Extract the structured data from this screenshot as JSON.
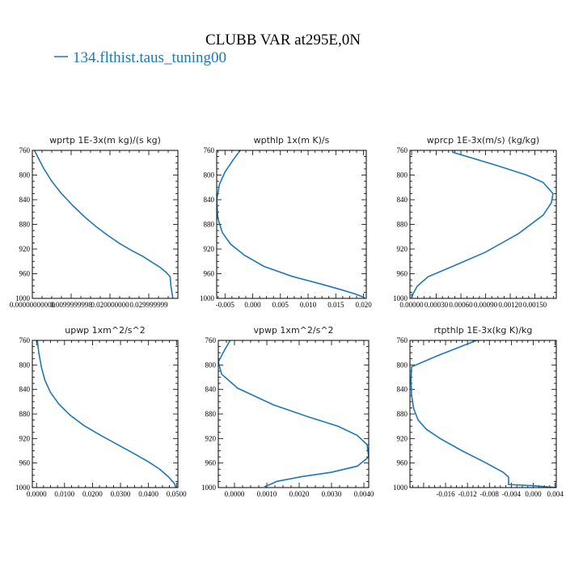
{
  "figure": {
    "title": "CLUBB VAR at295E,0N",
    "legend_label": "134.flthist.taus_tuning00",
    "line_color": "#1f77b4"
  },
  "chart_data": [
    {
      "type": "line",
      "title": "wprtp  1E-3x(m kg)/(s kg)",
      "xlim": [
        0.0,
        0.0375
      ],
      "xticks": [
        0.0,
        0.01,
        0.02,
        0.03
      ],
      "xtick_labels": [
        "0.00000000000",
        "0.0099999998",
        "0.020000000",
        "0.029999999"
      ],
      "ylim": [
        760,
        1000
      ],
      "yticks": [
        760,
        800,
        840,
        880,
        920,
        960,
        1000
      ],
      "ytick_labels": [
        "760",
        "800",
        "840",
        "880",
        "920",
        "960",
        "1000"
      ],
      "series": [
        {
          "x": [
            0.0003,
            0.0015,
            0.003,
            0.005,
            0.0075,
            0.0105,
            0.0135,
            0.0165,
            0.0195,
            0.0225,
            0.0255,
            0.0285,
            0.031,
            0.033,
            0.0345,
            0.0355,
            0.0357,
            0.0362
          ],
          "y": [
            757,
            772,
            790,
            810,
            830,
            850,
            868,
            884,
            898,
            911,
            922,
            932,
            942,
            950,
            958,
            965,
            980,
            1000
          ]
        }
      ]
    },
    {
      "type": "line",
      "title": "wpthlp  1x(m K)/s",
      "xlim": [
        -0.0065,
        0.0205
      ],
      "xticks": [
        -0.005,
        0.0,
        0.005,
        0.01,
        0.015,
        0.02
      ],
      "xtick_labels": [
        "-0.005",
        "0.000",
        "0.005",
        "0.010",
        "0.015",
        "0.020"
      ],
      "ylim": [
        760,
        1000
      ],
      "yticks": [
        760,
        800,
        840,
        880,
        920,
        960,
        1000
      ],
      "ytick_labels": [
        "760",
        "800",
        "840",
        "880",
        "920",
        "960",
        "1000"
      ],
      "series": [
        {
          "x": [
            -0.002,
            -0.0035,
            -0.005,
            -0.006,
            -0.0065,
            -0.0063,
            -0.0055,
            -0.004,
            -0.0015,
            0.002,
            0.007,
            0.012,
            0.016,
            0.0185,
            0.02,
            0.0202
          ],
          "y": [
            757,
            775,
            795,
            815,
            840,
            870,
            893,
            912,
            930,
            948,
            964,
            976,
            986,
            993,
            998,
            1000
          ]
        }
      ]
    },
    {
      "type": "line",
      "title": "wprcp  1E-3x(m/s) (kg/kg)",
      "xlim": [
        -2e-05,
        0.00176
      ],
      "xticks": [
        0.0,
        0.0003,
        0.0006,
        0.0009,
        0.0012,
        0.0015
      ],
      "xtick_labels": [
        "0.00000",
        "0.00030",
        "0.00060",
        "0.00090",
        "0.00120",
        "0.00150"
      ],
      "ylim": [
        760,
        1000
      ],
      "yticks": [
        760,
        800,
        840,
        880,
        920,
        960,
        1000
      ],
      "ytick_labels": [
        "760",
        "800",
        "840",
        "880",
        "920",
        "960",
        "1000"
      ],
      "series": [
        {
          "x": [
            0.0005,
            0.0005,
            0.001,
            0.0014,
            0.0016,
            0.00172,
            0.0017,
            0.0016,
            0.0013,
            0.0009,
            0.0005,
            0.0002,
            7e-05,
            2e-05,
            0.0
          ],
          "y": [
            757,
            763,
            783,
            800,
            812,
            830,
            845,
            865,
            895,
            925,
            948,
            965,
            980,
            992,
            1000
          ]
        }
      ]
    },
    {
      "type": "line",
      "title": "upwp  1xm^2/s^2",
      "xlim": [
        -0.0015,
        0.0505
      ],
      "xticks": [
        0.0,
        0.01,
        0.02,
        0.03,
        0.04,
        0.05
      ],
      "xtick_labels": [
        "0.0000",
        "0.0100",
        "0.0200",
        "0.0300",
        "0.0400",
        "0.0500"
      ],
      "ylim": [
        760,
        1000
      ],
      "yticks": [
        760,
        800,
        840,
        880,
        920,
        960,
        1000
      ],
      "ytick_labels": [
        "760",
        "800",
        "840",
        "880",
        "920",
        "960",
        "1000"
      ],
      "series": [
        {
          "x": [
            0.0002,
            0.0008,
            0.0018,
            0.003,
            0.005,
            0.008,
            0.012,
            0.017,
            0.023,
            0.029,
            0.035,
            0.04,
            0.044,
            0.047,
            0.0492,
            0.0498
          ],
          "y": [
            757,
            780,
            805,
            825,
            845,
            864,
            882,
            899,
            915,
            930,
            945,
            958,
            970,
            982,
            993,
            1000
          ]
        }
      ]
    },
    {
      "type": "line",
      "title": "vpwp  1xm^2/s^2",
      "xlim": [
        -0.0005,
        0.00415
      ],
      "xticks": [
        0.0,
        0.001,
        0.002,
        0.003,
        0.004
      ],
      "xtick_labels": [
        "0.0000",
        "0.0010",
        "0.0020",
        "0.0030",
        "0.0040"
      ],
      "ylim": [
        760,
        1000
      ],
      "yticks": [
        760,
        800,
        840,
        880,
        920,
        960,
        1000
      ],
      "ytick_labels": [
        "760",
        "800",
        "840",
        "880",
        "920",
        "960",
        "1000"
      ],
      "series": [
        {
          "x": [
            -0.0001,
            -0.0003,
            -0.0005,
            -0.0004,
            0.0001,
            0.0012,
            0.0023,
            0.0032,
            0.0038,
            0.0041,
            0.00415,
            0.0038,
            0.003,
            0.0021,
            0.0013,
            0.0011,
            0.00095,
            0.001
          ],
          "y": [
            757,
            775,
            795,
            815,
            838,
            865,
            885,
            900,
            915,
            930,
            950,
            965,
            975,
            982,
            990,
            995,
            998,
            1000
          ]
        }
      ]
    },
    {
      "type": "line",
      "title": "rtpthlp  1E-3x(kg K)/kg",
      "xlim": [
        -0.0225,
        0.0042
      ],
      "xticks": [
        -0.016,
        -0.012,
        -0.008,
        -0.004,
        0.0,
        0.004
      ],
      "xtick_labels": [
        "-0.016",
        "-0.012",
        "-0.008",
        "-0.004",
        "0.000",
        "0.004"
      ],
      "ylim": [
        760,
        1000
      ],
      "yticks": [
        760,
        800,
        840,
        880,
        920,
        960,
        1000
      ],
      "ytick_labels": [
        "760",
        "800",
        "840",
        "880",
        "920",
        "960",
        "1000"
      ],
      "series": [
        {
          "x": [
            -0.0095,
            -0.0175,
            -0.0222,
            -0.0223,
            -0.0222,
            -0.0218,
            -0.021,
            -0.0195,
            -0.017,
            -0.013,
            -0.009,
            -0.0055,
            -0.0045,
            -0.0045,
            0.0,
            0.0042
          ],
          "y": [
            757,
            785,
            803,
            825,
            850,
            872,
            890,
            905,
            920,
            940,
            958,
            975,
            983,
            995,
            997,
            1000
          ]
        }
      ]
    }
  ]
}
